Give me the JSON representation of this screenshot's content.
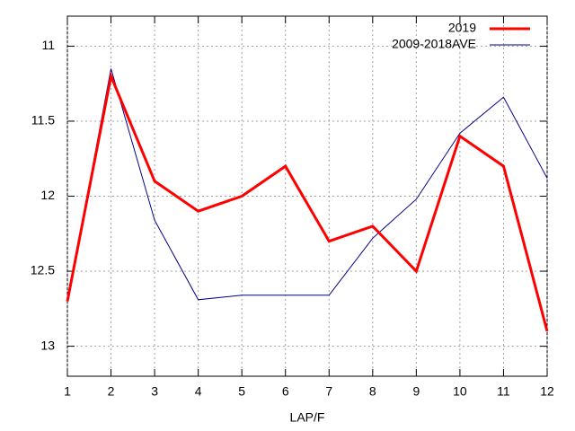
{
  "chart_data": {
    "type": "line",
    "x_label": "LAP/F",
    "x": [
      1,
      2,
      3,
      4,
      5,
      6,
      7,
      8,
      9,
      10,
      11,
      12
    ],
    "xlim": [
      1,
      12
    ],
    "xticks": [
      1,
      2,
      3,
      4,
      5,
      6,
      7,
      8,
      9,
      10,
      11,
      12
    ],
    "ylim": [
      10.8,
      13.2
    ],
    "y_reversed": true,
    "yticks": [
      11,
      11.5,
      12,
      12.5,
      13
    ],
    "grid": true,
    "legend": "top-right",
    "series": [
      {
        "name": "2019",
        "color": "#ff0000",
        "width": 3,
        "values": [
          12.7,
          11.2,
          11.9,
          12.1,
          12.0,
          11.8,
          12.3,
          12.2,
          12.5,
          11.6,
          11.8,
          12.9
        ]
      },
      {
        "name": "2009-2018AVE",
        "color": "#00008b",
        "width": 1,
        "values": [
          12.7,
          11.15,
          12.16,
          12.69,
          12.66,
          12.66,
          12.66,
          12.28,
          12.02,
          11.58,
          11.34,
          11.88
        ]
      }
    ]
  }
}
